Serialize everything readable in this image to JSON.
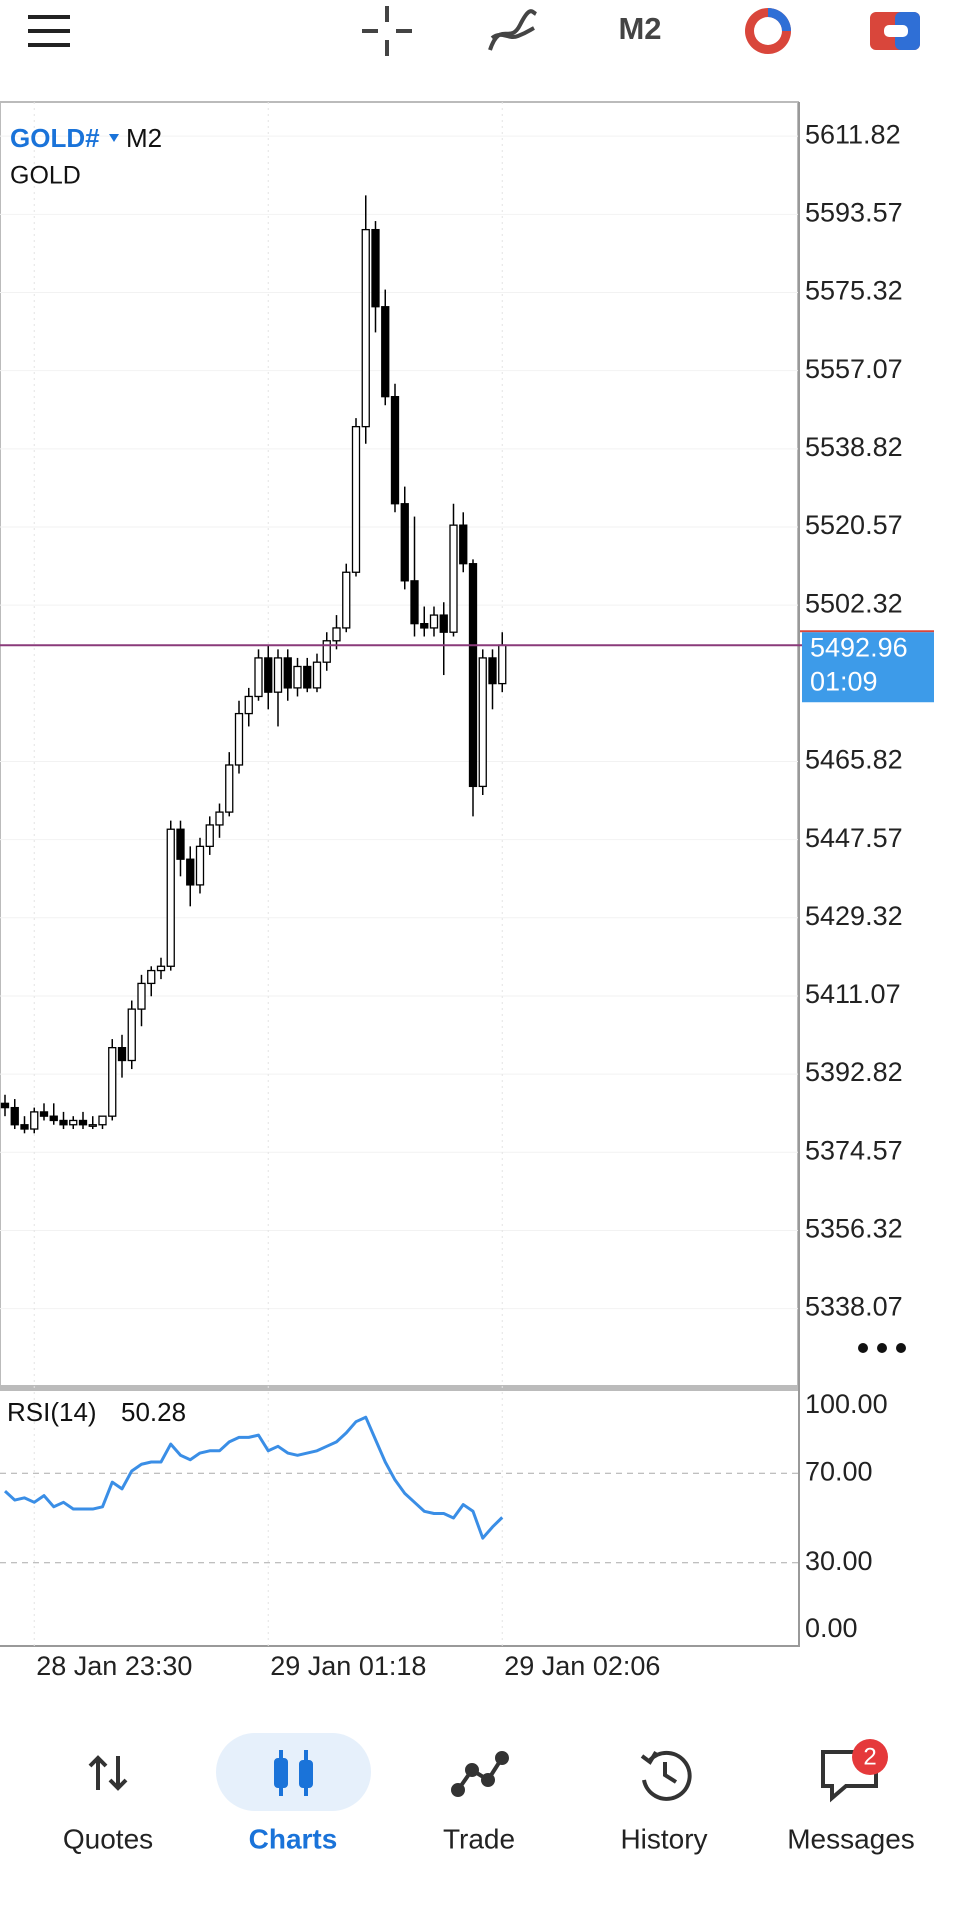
{
  "top_bar": {
    "timeframe": "M2"
  },
  "chart_data": [
    {
      "type": "candlestick",
      "title": "GOLD#",
      "timeframe": "M2",
      "subtitle": "GOLD",
      "categories": [
        null,
        null,
        null,
        "28 Jan 23:30",
        null,
        null,
        null,
        null,
        null,
        null,
        null,
        null,
        null,
        null,
        null,
        null,
        null,
        null,
        null,
        null,
        null,
        null,
        null,
        null,
        null,
        null,
        null,
        "29 Jan 01:18",
        null,
        null,
        null,
        null,
        null,
        null,
        null,
        null,
        null,
        null,
        null,
        null,
        null,
        null,
        null,
        null,
        null,
        null,
        null,
        null,
        null,
        null,
        null,
        "29 Jan 02:06"
      ],
      "open": [
        5386,
        5385,
        5381,
        5380,
        5384,
        5383,
        5382,
        5381,
        5382,
        5381,
        5381,
        5383,
        5399,
        5396,
        5408,
        5414,
        5417,
        5418,
        5450,
        5443,
        5437,
        5446,
        5451,
        5454,
        5465,
        5477,
        5481,
        5490,
        5482,
        5490,
        5483,
        5488,
        5483,
        5489,
        5494,
        5497,
        5510,
        5544,
        5590,
        5572,
        5551,
        5526,
        5508,
        5498,
        5497,
        5500,
        5496,
        5521,
        5512,
        5460,
        5490,
        5484
      ],
      "high": [
        5388,
        5387,
        5383,
        5385,
        5386,
        5386,
        5384,
        5383,
        5384,
        5383,
        5383,
        5401,
        5402,
        5410,
        5416,
        5418,
        5420,
        5452,
        5452,
        5446,
        5448,
        5453,
        5456,
        5468,
        5480,
        5483,
        5492,
        5493,
        5492,
        5492,
        5490,
        5490,
        5491,
        5496,
        5500,
        5512,
        5546,
        5598,
        5592,
        5576,
        5554,
        5530,
        5523,
        5502,
        5502,
        5503,
        5526,
        5524,
        5513,
        5492,
        5492,
        5496
      ],
      "low": [
        5383,
        5380,
        5379,
        5379,
        5382,
        5381,
        5380,
        5380,
        5380,
        5380,
        5380,
        5382,
        5392,
        5394,
        5404,
        5411,
        5415,
        5417,
        5439,
        5432,
        5435,
        5444,
        5448,
        5453,
        5463,
        5474,
        5480,
        5478,
        5474,
        5480,
        5481,
        5482,
        5482,
        5487,
        5492,
        5496,
        5509,
        5540,
        5566,
        5549,
        5524,
        5506,
        5495,
        5495,
        5495,
        5486,
        5495,
        5510,
        5453,
        5458,
        5478,
        5482
      ],
      "close": [
        5385,
        5381,
        5380,
        5384,
        5383,
        5382,
        5381,
        5382,
        5381,
        5381,
        5383,
        5399,
        5396,
        5408,
        5414,
        5417,
        5418,
        5450,
        5443,
        5437,
        5446,
        5451,
        5454,
        5465,
        5477,
        5481,
        5490,
        5482,
        5490,
        5483,
        5488,
        5483,
        5489,
        5494,
        5497,
        5510,
        5544,
        5590,
        5572,
        5551,
        5526,
        5508,
        5498,
        5497,
        5500,
        5496,
        5521,
        5512,
        5460,
        5490,
        5484,
        5493
      ],
      "ylim": [
        5320.0,
        5619.8
      ],
      "yticks": [
        5611.82,
        5593.57,
        5575.32,
        5557.07,
        5538.82,
        5520.57,
        5502.32,
        5465.82,
        5447.57,
        5429.32,
        5411.07,
        5392.82,
        5374.57,
        5356.32,
        5338.07
      ],
      "current_price": 5492.96,
      "countdown": "01:09",
      "colors": {
        "up": "#ffffff",
        "down": "#000000",
        "edge": "#000000",
        "price_line": "#8a3a7a"
      }
    },
    {
      "type": "line",
      "series": [
        {
          "name": "RSI(14)",
          "color": "#3a8ee6",
          "values": [
            62,
            58,
            59,
            57,
            60,
            55,
            57,
            54,
            54,
            54,
            55,
            66,
            63,
            71,
            74,
            75,
            75,
            83,
            78,
            76,
            79,
            80,
            80,
            84,
            86,
            86,
            87,
            80,
            82,
            79,
            78,
            79,
            80,
            82,
            84,
            88,
            93,
            95,
            85,
            75,
            67,
            61,
            57,
            53,
            52,
            52,
            50,
            56,
            53,
            41,
            46,
            50.28
          ]
        }
      ],
      "ylim": [
        0,
        100
      ],
      "yticks": [
        {
          "value": 100,
          "label": "100.00"
        },
        {
          "value": 70,
          "label": "70.00"
        },
        {
          "value": 30,
          "label": "30.00"
        },
        {
          "value": 0,
          "label": "0.00"
        }
      ]
    }
  ],
  "nav": {
    "items": [
      {
        "label": "Quotes"
      },
      {
        "label": "Charts"
      },
      {
        "label": "Trade"
      },
      {
        "label": "History"
      },
      {
        "label": "Messages"
      }
    ],
    "active": 1,
    "badge": 2
  }
}
